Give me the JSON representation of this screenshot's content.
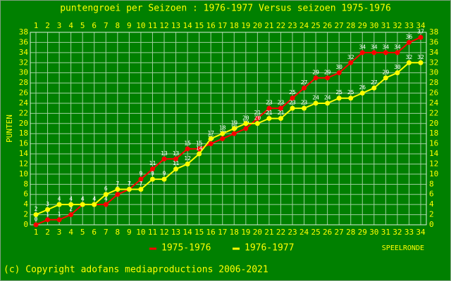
{
  "chart_data": {
    "type": "line",
    "title": "puntengroei per Seizoen : 1976-1977 Versus seizoen 1975-1976",
    "ylabel": "PUNTEN",
    "xlabel": "SPEELRONDE",
    "categories": [
      1,
      2,
      3,
      4,
      5,
      6,
      7,
      8,
      9,
      10,
      11,
      12,
      13,
      14,
      15,
      16,
      17,
      18,
      19,
      20,
      21,
      22,
      23,
      24,
      25,
      26,
      27,
      28,
      29,
      30,
      31,
      32,
      33,
      34
    ],
    "series": [
      {
        "name": "1975-1976",
        "color": "#ff0000",
        "values": [
          0,
          1,
          1,
          2,
          4,
          4,
          4,
          6,
          7,
          9,
          11,
          13,
          13,
          15,
          15,
          16,
          17,
          18,
          19,
          21,
          23,
          23,
          25,
          27,
          29,
          29,
          30,
          32,
          34,
          34,
          34,
          34,
          36,
          37
        ]
      },
      {
        "name": "1976-1977",
        "color": "#ffff00",
        "values": [
          2,
          3,
          4,
          4,
          4,
          4,
          6,
          7,
          7,
          7,
          9,
          9,
          11,
          12,
          14,
          17,
          18,
          19,
          20,
          20,
          21,
          21,
          23,
          23,
          24,
          24,
          25,
          25,
          26,
          27,
          29,
          30,
          32,
          32
        ]
      }
    ],
    "ylim": [
      0,
      38
    ],
    "yticks": [
      0,
      2,
      4,
      6,
      8,
      10,
      12,
      14,
      16,
      18,
      20,
      22,
      24,
      26,
      28,
      30,
      32,
      34,
      36,
      38
    ],
    "grid": true,
    "footer": "(c) Copyright adofans mediaproductions 2006-2021"
  }
}
